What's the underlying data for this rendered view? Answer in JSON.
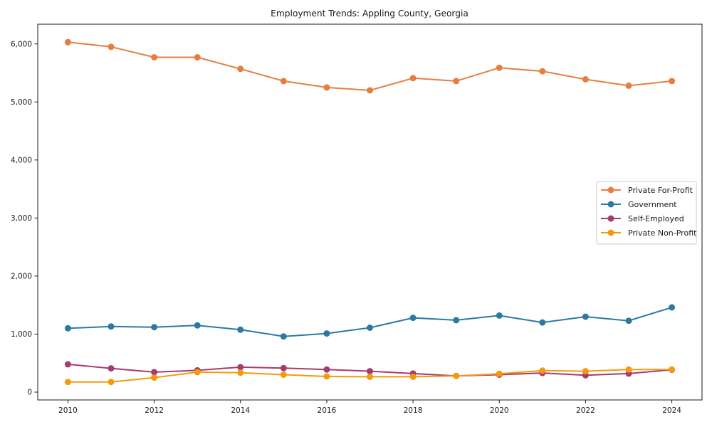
{
  "chart_data": {
    "type": "line",
    "title": "Employment Trends: Appling County, Georgia",
    "xlabel": "",
    "ylabel": "",
    "grid": false,
    "legend_position": "center-right",
    "x": [
      2010,
      2011,
      2012,
      2013,
      2014,
      2015,
      2016,
      2017,
      2018,
      2019,
      2020,
      2021,
      2022,
      2023,
      2024
    ],
    "xlim": [
      2009.3,
      2024.7
    ],
    "ylim": [
      -135,
      6340
    ],
    "xticks": {
      "values": [
        2010,
        2012,
        2014,
        2016,
        2018,
        2020,
        2022,
        2024
      ],
      "labels": [
        "2010",
        "2012",
        "2014",
        "2016",
        "2018",
        "2020",
        "2022",
        "2024"
      ]
    },
    "yticks": {
      "values": [
        0,
        1000,
        2000,
        3000,
        4000,
        5000,
        6000
      ],
      "labels": [
        "0",
        "1,000",
        "2,000",
        "3,000",
        "4,000",
        "5,000",
        "6,000"
      ]
    },
    "series": [
      {
        "name": "Private For-Profit",
        "color": "#e67e41",
        "values": [
          6030,
          5950,
          5770,
          5770,
          5570,
          5360,
          5250,
          5200,
          5410,
          5360,
          5590,
          5530,
          5390,
          5280,
          5360
        ]
      },
      {
        "name": "Government",
        "color": "#2d79a2",
        "values": [
          1100,
          1130,
          1120,
          1150,
          1075,
          960,
          1010,
          1110,
          1280,
          1240,
          1320,
          1200,
          1300,
          1230,
          1460
        ]
      },
      {
        "name": "Self-Employed",
        "color": "#a33c70",
        "values": [
          480,
          410,
          345,
          375,
          430,
          415,
          390,
          360,
          320,
          280,
          300,
          330,
          290,
          320,
          385
        ]
      },
      {
        "name": "Private Non-Profit",
        "color": "#f49a0c",
        "values": [
          175,
          175,
          250,
          345,
          335,
          300,
          270,
          265,
          265,
          280,
          315,
          370,
          360,
          390,
          390
        ]
      }
    ]
  }
}
